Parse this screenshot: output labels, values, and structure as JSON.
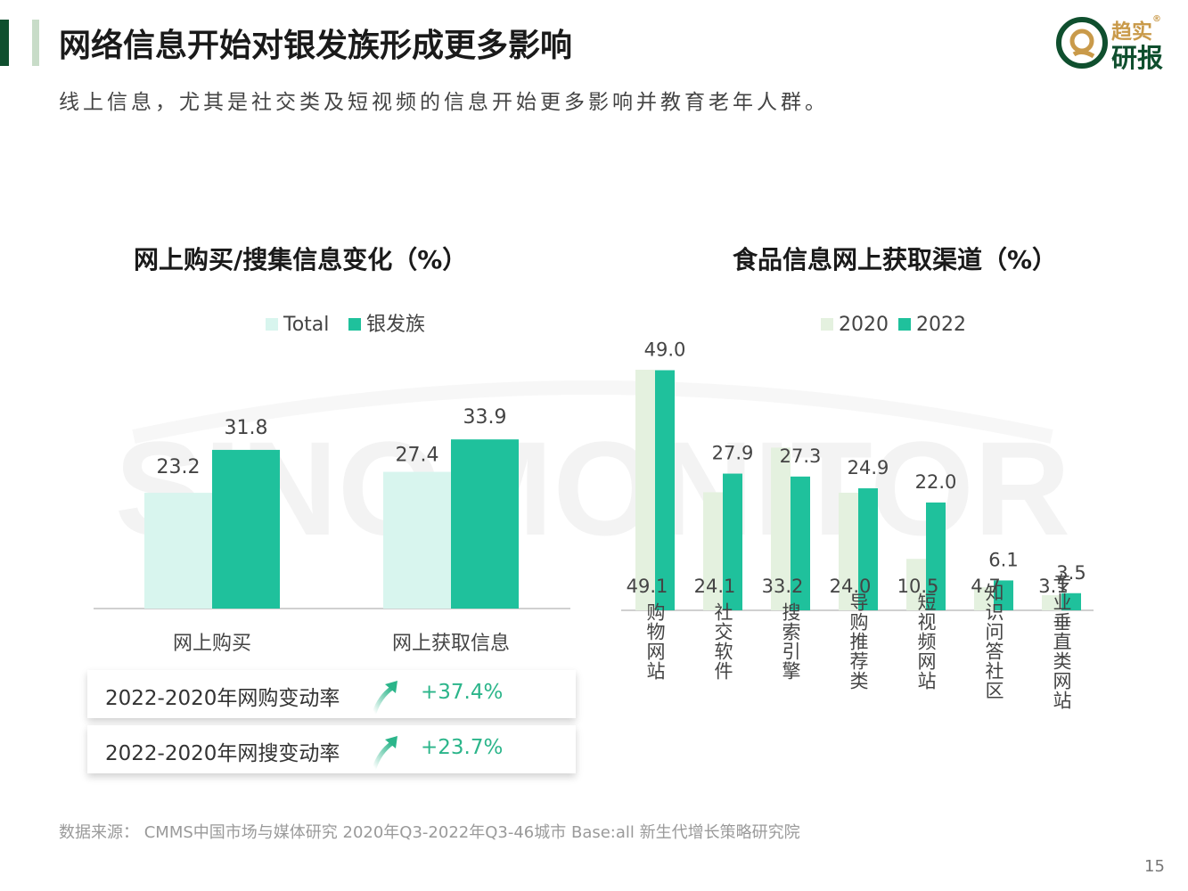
{
  "header": {
    "title": "网络信息开始对银发族形成更多影响",
    "subtitle": "线上信息，尤其是社交类及短视频的信息开始更多影响并教育老年人群。"
  },
  "logo": {
    "line1": "趋实",
    "line2": "研报",
    "mark": "®"
  },
  "watermark": "SINOMONITOR",
  "colors": {
    "total": "#d8f5ee",
    "silver": "#1fc19c",
    "y2020": "#e4f1df",
    "y2022": "#1fc19c",
    "accent": "#2bb58a",
    "title_bar": "#0f4f2e"
  },
  "chart_data": [
    {
      "type": "bar",
      "title": "网上购买/搜集信息变化（%）",
      "categories": [
        "网上购买",
        "网上获取信息"
      ],
      "series": [
        {
          "name": "Total",
          "values": [
            23.2,
            27.4
          ]
        },
        {
          "name": "银发族",
          "values": [
            31.8,
            33.9
          ]
        }
      ],
      "value_labels": [
        [
          "23.2",
          "27.4"
        ],
        [
          "31.8",
          "33.9"
        ]
      ],
      "xlabel": "",
      "ylabel": "",
      "ylim": [
        0,
        40
      ],
      "grid": false,
      "legend": "top"
    },
    {
      "type": "bar",
      "title": "食品信息网上获取渠道（%）",
      "categories": [
        "购物网站",
        "社交软件",
        "搜索引擎",
        "导购推荐类",
        "短视频网站",
        "知识问答社区",
        "专业垂直类网站"
      ],
      "series": [
        {
          "name": "2020",
          "values": [
            49.1,
            24.1,
            33.2,
            24.0,
            10.5,
            4.7,
            3.1
          ]
        },
        {
          "name": "2022",
          "values": [
            49.0,
            27.9,
            27.3,
            24.9,
            22.0,
            6.1,
            3.5
          ]
        }
      ],
      "value_labels": [
        [
          "49.1",
          "24.1",
          "33.2",
          "24.0",
          "10.5",
          "4.7",
          "3.1"
        ],
        [
          "49.0",
          "27.9",
          "27.3",
          "24.9",
          "22.0",
          "6.1",
          "3.5"
        ]
      ],
      "xlabel": "",
      "ylabel": "",
      "ylim": [
        0,
        50
      ],
      "grid": false,
      "legend": "top"
    }
  ],
  "rates": [
    {
      "label": "2022-2020年网购变动率",
      "value": "+37.4%"
    },
    {
      "label": "2022-2020年网搜变动率",
      "value": "+23.7%"
    }
  ],
  "footer": {
    "source": "数据来源：  CMMS中国市场与媒体研究 2020年Q3-2022年Q3-46城市 Base:all   新生代增长策略研究院",
    "page": "15"
  }
}
